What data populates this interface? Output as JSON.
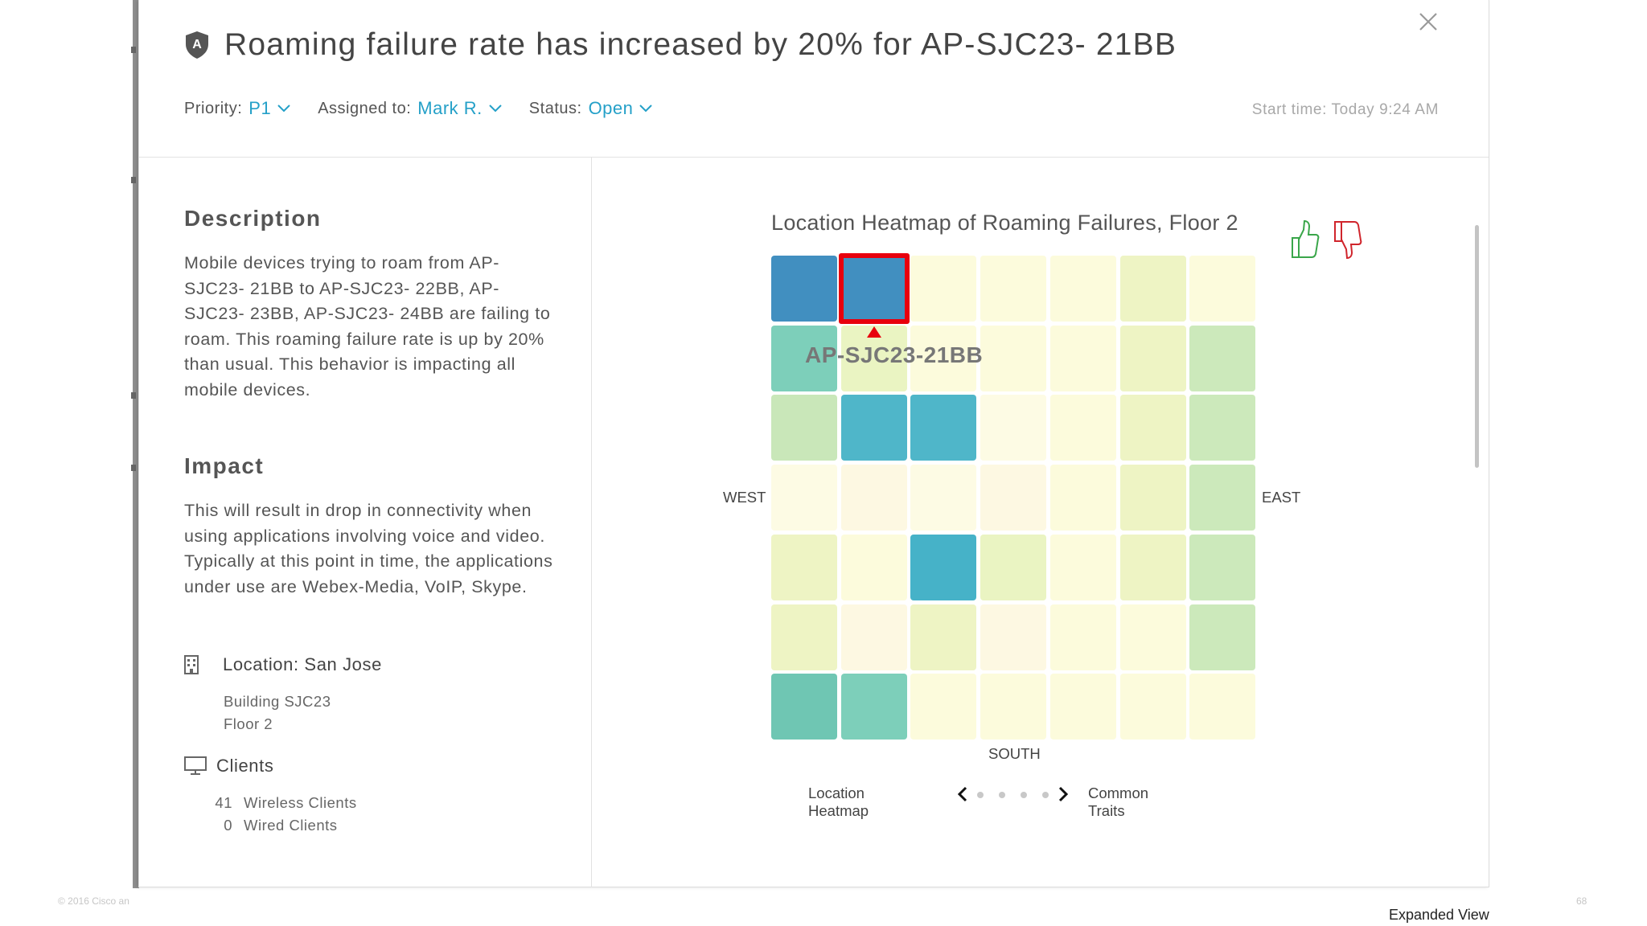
{
  "modal": {
    "title": "Roaming failure rate has increased by 20% for AP-SJC23- 21BB",
    "priority_label": "Priority:",
    "priority_value": "P1",
    "assigned_label": "Assigned to:",
    "assigned_value": "Mark R.",
    "status_label": "Status:",
    "status_value": "Open",
    "start_time": "Start time: Today 9:24 AM"
  },
  "description": {
    "heading": "Description",
    "text": "Mobile devices trying to roam from AP-SJC23- 21BB to AP-SJC23- 22BB, AP-SJC23- 23BB, AP-SJC23- 24BB are failing to roam. This roaming failure rate is up by 20% than usual. This behavior is impacting all mobile devices."
  },
  "impact": {
    "heading": "Impact",
    "text": "This will result in drop in connectivity when using applications involving voice and video. Typically at this point in time, the applications under use are Webex-Media, VoIP, Skype."
  },
  "location": {
    "label_key": "Location",
    "label_sep": ":",
    "label_value": " San Jose",
    "building": "Building SJC23",
    "floor": "Floor 2"
  },
  "clients": {
    "label": "Clients",
    "wireless_count": "41",
    "wireless_label": "Wireless Clients",
    "wired_count": "0",
    "wired_label": "Wired Clients"
  },
  "heatmap": {
    "title": "Location Heatmap of Roaming Failures, Floor 2",
    "ap_label": "AP-SJC23-21BB",
    "west": "WEST",
    "east": "EAST",
    "south": "SOUTH",
    "selected_cell": [
      0,
      1
    ],
    "colors": [
      [
        "#418fc0",
        "#418fc0",
        "#fcfbdc",
        "#fcfbdc",
        "#fcfbdc",
        "#eef4c4",
        "#fcfbdc"
      ],
      [
        "#7dcfba",
        "#eaf4c2",
        "#fcfbdc",
        "#fcfbdc",
        "#fcfbdc",
        "#eef4c4",
        "#cce9bb"
      ],
      [
        "#c9e7b9",
        "#4fb6c9",
        "#4fb6c9",
        "#fdfbe4",
        "#fcfbdc",
        "#eef4c4",
        "#cce9bb"
      ],
      [
        "#fdfbe4",
        "#fdf8e2",
        "#fdfbe4",
        "#fdf8e2",
        "#fcfbdc",
        "#eef4c4",
        "#cce9bb"
      ],
      [
        "#eef4c4",
        "#fcfbdc",
        "#46b2c8",
        "#eaf4c2",
        "#fcfbdc",
        "#eef4c4",
        "#cce9bb"
      ],
      [
        "#eef4c4",
        "#fdf8e2",
        "#eef4c4",
        "#fdf8e2",
        "#fcfbdc",
        "#fcfbdc",
        "#cce9bb"
      ],
      [
        "#6fc6b3",
        "#7dcfba",
        "#fcfbdc",
        "#fcfbdc",
        "#fcfbdc",
        "#fcfbdc",
        "#fcfbdc"
      ]
    ]
  },
  "pager": {
    "left_label": "Location Heatmap",
    "right_label": "Common Traits",
    "dot_count": 4
  },
  "footer": {
    "copyright": "© 2016 Cisco an",
    "page": "68",
    "view_label": "Expanded View"
  }
}
